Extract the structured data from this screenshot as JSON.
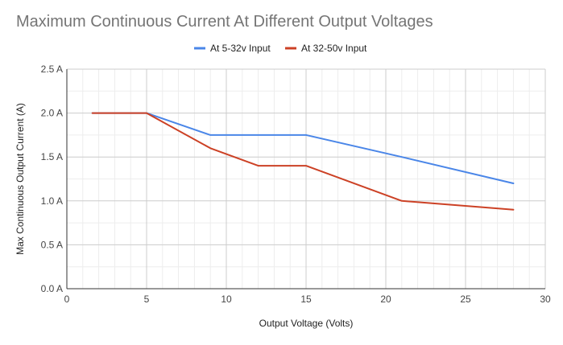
{
  "chart_data": {
    "type": "line",
    "title": "Maximum Continuous Current At Different Output Voltages",
    "xlabel": "Output Voltage (Volts)",
    "ylabel": "Max Continuous Output Current (A)",
    "xlim": [
      0,
      30
    ],
    "ylim": [
      0,
      2.5
    ],
    "x_ticks": [
      0,
      5,
      10,
      15,
      20,
      25,
      30
    ],
    "x_tick_labels": [
      "0",
      "5",
      "10",
      "15",
      "20",
      "25",
      "30"
    ],
    "y_ticks": [
      0,
      0.5,
      1.0,
      1.5,
      2.0,
      2.5
    ],
    "y_tick_labels": [
      "0.0 A",
      "0.5 A",
      "1.0 A",
      "1.5 A",
      "2.0 A",
      "2.5 A"
    ],
    "grid": true,
    "legend_position": "top",
    "series": [
      {
        "name": "At 5-32v Input",
        "color": "#4a86e8",
        "points": [
          [
            1.6,
            2.0
          ],
          [
            5,
            2.0
          ],
          [
            9,
            1.75
          ],
          [
            15,
            1.75
          ],
          [
            21,
            1.5
          ],
          [
            28,
            1.2
          ]
        ]
      },
      {
        "name": "At 32-50v Input",
        "color": "#cc4125",
        "points": [
          [
            1.6,
            2.0
          ],
          [
            5,
            2.0
          ],
          [
            9,
            1.6
          ],
          [
            12,
            1.4
          ],
          [
            15,
            1.4
          ],
          [
            21,
            1.0
          ],
          [
            28,
            0.9
          ]
        ]
      }
    ]
  }
}
